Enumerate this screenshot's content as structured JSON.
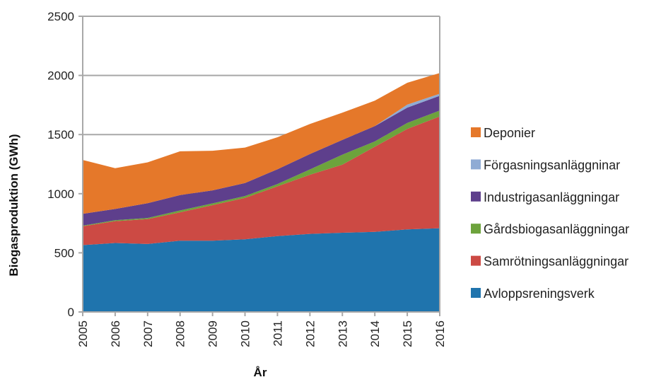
{
  "chart_data": {
    "type": "area",
    "stacked": true,
    "xlabel": "År",
    "ylabel": "Biogasproduktion (GWh)",
    "ylim": [
      0,
      2500
    ],
    "yticks": [
      0,
      500,
      1000,
      1500,
      2000,
      2500
    ],
    "categories": [
      "2005",
      "2006",
      "2007",
      "2008",
      "2009",
      "2010",
      "2011",
      "2012",
      "2013",
      "2014",
      "2015",
      "2016"
    ],
    "grid": "horizontal",
    "legend_position": "right",
    "series": [
      {
        "name": "Avloppsreningsverk",
        "color": "#1f74ad",
        "values": [
          565,
          583,
          575,
          603,
          603,
          615,
          642,
          660,
          670,
          677,
          698,
          708
        ]
      },
      {
        "name": "Samrötningsanläggningar",
        "color": "#cc4a44",
        "values": [
          160,
          185,
          210,
          240,
          300,
          350,
          420,
          500,
          575,
          720,
          850,
          945
        ]
      },
      {
        "name": "Gårdsbiogasanläggningar",
        "color": "#6da33c",
        "values": [
          5,
          8,
          10,
          15,
          15,
          15,
          20,
          45,
          85,
          45,
          50,
          50
        ]
      },
      {
        "name": "Industrigasanläggningar",
        "color": "#5e3f8c",
        "values": [
          100,
          95,
          125,
          130,
          110,
          110,
          125,
          130,
          125,
          130,
          130,
          125
        ]
      },
      {
        "name": "Förgasningsanläggninar",
        "color": "#8fabd4",
        "values": [
          0,
          0,
          0,
          0,
          0,
          0,
          0,
          0,
          0,
          0,
          25,
          17
        ]
      },
      {
        "name": "Deponier",
        "color": "#e5782a",
        "values": [
          455,
          345,
          345,
          370,
          335,
          300,
          270,
          255,
          230,
          215,
          185,
          175
        ]
      }
    ]
  }
}
